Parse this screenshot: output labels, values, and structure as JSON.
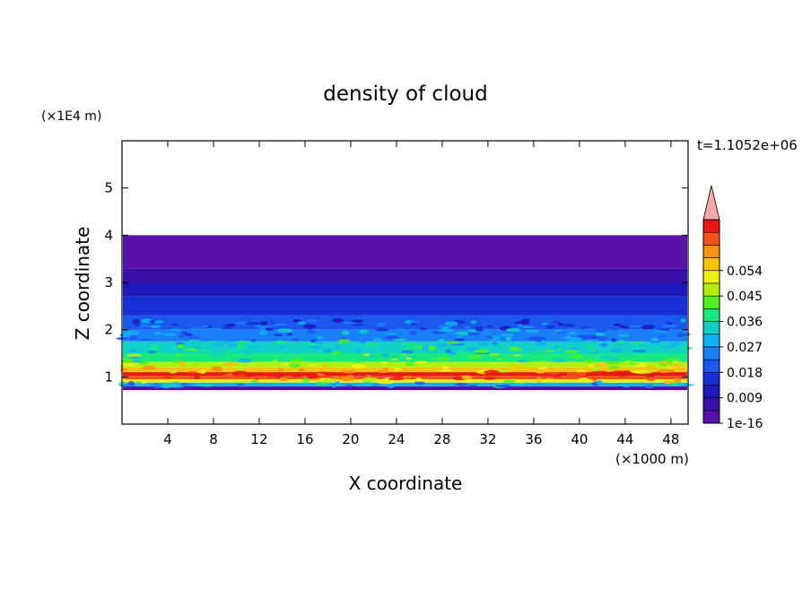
{
  "chart_data": {
    "type": "heatmap",
    "title": "density of cloud",
    "xlabel": "X coordinate",
    "ylabel": "Z coordinate",
    "x_unit": "(×1000 m)",
    "y_unit": "(×1E4 m)",
    "time_label": "t=1.1052e+06",
    "xlim": [
      0,
      49.5
    ],
    "ylim": [
      0,
      6
    ],
    "x_ticks": [
      4,
      8,
      12,
      16,
      20,
      24,
      28,
      32,
      36,
      40,
      44,
      48
    ],
    "y_ticks": [
      1,
      2,
      3,
      4,
      5
    ],
    "colorbar": {
      "levels": [
        "1e-16",
        "0.009",
        "0.018",
        "0.027",
        "0.036",
        "0.045",
        "0.054"
      ],
      "colors": [
        "#5a0fa8",
        "#3a10a8",
        "#1f18b8",
        "#1830d8",
        "#1a58f0",
        "#1a80f8",
        "#10b0f0",
        "#10d0c8",
        "#18e880",
        "#50f020",
        "#b0f010",
        "#f0f010",
        "#f8c010",
        "#f89010",
        "#f85018",
        "#e81818",
        "#f8a8a8"
      ]
    },
    "profile": [
      {
        "z": 0.72,
        "level": 0
      },
      {
        "z": 0.8,
        "level": 6
      },
      {
        "z": 0.88,
        "level": 11
      },
      {
        "z": 0.95,
        "level": 14
      },
      {
        "z": 1.02,
        "level": 15
      },
      {
        "z": 1.1,
        "level": 12
      },
      {
        "z": 1.2,
        "level": 10
      },
      {
        "z": 1.32,
        "level": 8
      },
      {
        "z": 1.5,
        "level": 7
      },
      {
        "z": 1.75,
        "level": 5
      },
      {
        "z": 2.0,
        "level": 4
      },
      {
        "z": 2.3,
        "level": 3
      },
      {
        "z": 2.7,
        "level": 2
      },
      {
        "z": 3.0,
        "level": 1
      },
      {
        "z": 3.3,
        "level": 0
      },
      {
        "z": 4.0,
        "level": 0
      }
    ]
  }
}
